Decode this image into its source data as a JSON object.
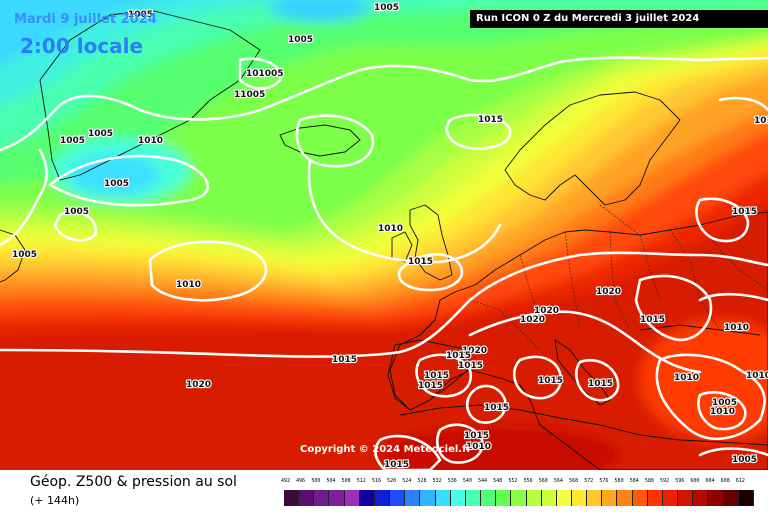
{
  "header": {
    "date_label": "Mardi 9 juillet 2024",
    "time_label": "2:00 locale",
    "run_label": "Run ICON 0 Z du Mercredi 3 juillet 2024"
  },
  "copyright": "Copyright © 2024 Meteociel.fr",
  "footer": {
    "title": "Géop. Z500 & pression au sol",
    "subtitle": "(+ 144h)"
  },
  "legend": {
    "values": [
      "492",
      "496",
      "500",
      "504",
      "508",
      "512",
      "516",
      "520",
      "524",
      "528",
      "532",
      "536",
      "540",
      "544",
      "548",
      "552",
      "556",
      "560",
      "564",
      "568",
      "572",
      "576",
      "580",
      "584",
      "588",
      "592",
      "596",
      "600",
      "604",
      "608",
      "612"
    ],
    "colors": [
      "#3c0a3c",
      "#5a0f6e",
      "#6e1e8c",
      "#7f1f9f",
      "#9a2fb8",
      "#1400a0",
      "#1020d8",
      "#1e4cff",
      "#2a82ff",
      "#32b4ff",
      "#3cdcff",
      "#46ffe6",
      "#4bffb4",
      "#50ff78",
      "#60ff50",
      "#8cff46",
      "#b4ff40",
      "#d2ff3c",
      "#f0ff3a",
      "#ffe832",
      "#ffc828",
      "#ffa81e",
      "#ff8214",
      "#ff5a0a",
      "#ff3200",
      "#ee1e00",
      "#d21400",
      "#b40a00",
      "#8c0000",
      "#640000",
      "#1e0000"
    ]
  },
  "map": {
    "pressure_labels": [
      "1005",
      "1005",
      "1005",
      "1005",
      "101005",
      "11005",
      "1010",
      "1005",
      "1005",
      "1015",
      "1005",
      "1010",
      "1005",
      "1015",
      "1020",
      "1020",
      "1020",
      "1015",
      "1010",
      "1020",
      "1015",
      "1015",
      "1015",
      "1015",
      "1015",
      "1015",
      "1015",
      "1010",
      "1010",
      "1005",
      "1010",
      "1015",
      "1005",
      "1005",
      "1015",
      "1020",
      "1015",
      "1010",
      "1015",
      "1010",
      "1015",
      "1005"
    ]
  }
}
